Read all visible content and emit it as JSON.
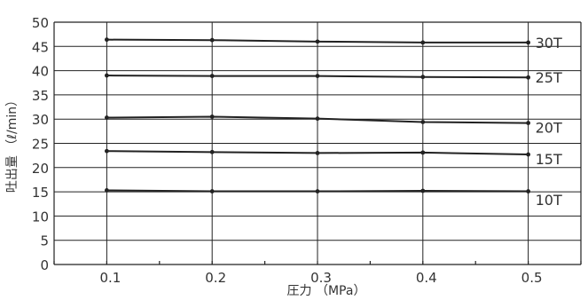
{
  "chart_data": {
    "type": "line",
    "title": "",
    "xlabel": "圧力 （MPa）",
    "ylabel": "吐出量 （ℓ/min）",
    "x": [
      0.1,
      0.2,
      0.3,
      0.4,
      0.5
    ],
    "x_ticks": [
      "0.1",
      "0.2",
      "0.3",
      "0.4",
      "0.5"
    ],
    "y_ticks": [
      "0",
      "5",
      "10",
      "15",
      "20",
      "25",
      "30",
      "35",
      "40",
      "45",
      "50"
    ],
    "xlim": [
      0.05,
      0.55
    ],
    "ylim": [
      0,
      50
    ],
    "grid": true,
    "series": [
      {
        "name": "30T",
        "values": [
          46.4,
          46.3,
          46.0,
          45.8,
          45.8
        ]
      },
      {
        "name": "25T",
        "values": [
          39.0,
          38.9,
          38.9,
          38.7,
          38.6
        ]
      },
      {
        "name": "20T",
        "values": [
          30.3,
          30.5,
          30.1,
          29.4,
          29.2
        ]
      },
      {
        "name": "15T",
        "values": [
          23.4,
          23.2,
          23.0,
          23.1,
          22.7
        ]
      },
      {
        "name": "10T",
        "values": [
          15.3,
          15.1,
          15.1,
          15.2,
          15.1
        ]
      }
    ],
    "series_label_offsets": [
      0,
      0,
      0.9,
      0.9,
      1.7
    ]
  }
}
